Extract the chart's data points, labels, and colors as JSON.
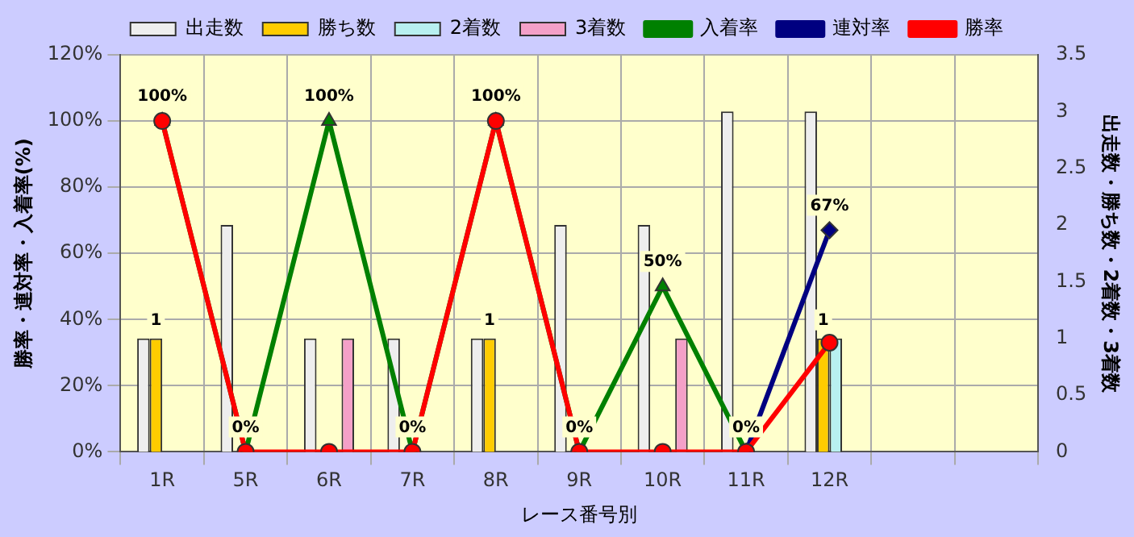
{
  "chart_data": {
    "type": "bar",
    "xlabel": "レース番号別",
    "ylabel": "勝率・連対率・入着率(%)",
    "y2label": "出走数・勝ち数・2着数・3着数",
    "categories": [
      "1R",
      "5R",
      "6R",
      "7R",
      "8R",
      "9R",
      "10R",
      "11R",
      "12R",
      null,
      null
    ],
    "series": [
      {
        "name": "出走数",
        "axis": "y2",
        "color": "#eeeeee",
        "values": [
          1,
          2,
          1,
          1,
          1,
          2,
          2,
          3,
          3,
          null,
          null
        ]
      },
      {
        "name": "勝ち数",
        "axis": "y2",
        "color": "#ffcc00",
        "values": [
          1,
          0,
          0,
          0,
          1,
          0,
          0,
          0,
          1,
          null,
          null
        ],
        "value_labels": [
          "1",
          null,
          null,
          null,
          "1",
          null,
          null,
          null,
          "1",
          null,
          null
        ]
      },
      {
        "name": "2着数",
        "axis": "y2",
        "color": "#b8f0f0",
        "values": [
          0,
          0,
          0,
          0,
          0,
          0,
          0,
          0,
          1,
          null,
          null
        ]
      },
      {
        "name": "3着数",
        "axis": "y2",
        "color": "#f4a0c8",
        "values": [
          0,
          0,
          1,
          0,
          0,
          0,
          1,
          0,
          0,
          null,
          null
        ]
      },
      {
        "name": "入着率",
        "type": "line",
        "marker": "triangle",
        "color": "#008000",
        "values": [
          100,
          0,
          100,
          0,
          100,
          0,
          50,
          0,
          null,
          null,
          null
        ],
        "value_labels": [
          "100%",
          "0%",
          "100%",
          "0%",
          "100%",
          "0%",
          "50%",
          "0%",
          null,
          null,
          null
        ]
      },
      {
        "name": "連対率",
        "type": "line",
        "marker": "diamond",
        "color": "#000080",
        "values": [
          null,
          null,
          null,
          null,
          null,
          null,
          null,
          0,
          67,
          null,
          null
        ],
        "value_labels": [
          null,
          null,
          null,
          null,
          null,
          null,
          null,
          null,
          "67%",
          null,
          null
        ]
      },
      {
        "name": "勝率",
        "type": "line",
        "marker": "circle",
        "color": "#ff0000",
        "values": [
          100,
          0,
          0,
          0,
          100,
          0,
          0,
          0,
          33,
          null,
          null
        ]
      }
    ],
    "ylim": [
      0,
      120
    ],
    "yticks": [
      {
        "value": 0,
        "label": "0%"
      },
      {
        "value": 20,
        "label": "20%"
      },
      {
        "value": 40,
        "label": "40%"
      },
      {
        "value": 60,
        "label": "60%"
      },
      {
        "value": 80,
        "label": "80%"
      },
      {
        "value": 100,
        "label": "100%"
      },
      {
        "value": 120,
        "label": "120%"
      }
    ],
    "y2lim": [
      0,
      3.5
    ],
    "y2ticks": [
      0,
      0.5,
      1,
      1.5,
      2,
      2.5,
      3,
      3.5
    ],
    "grid": true,
    "legend": "top",
    "line_style": "solid"
  }
}
